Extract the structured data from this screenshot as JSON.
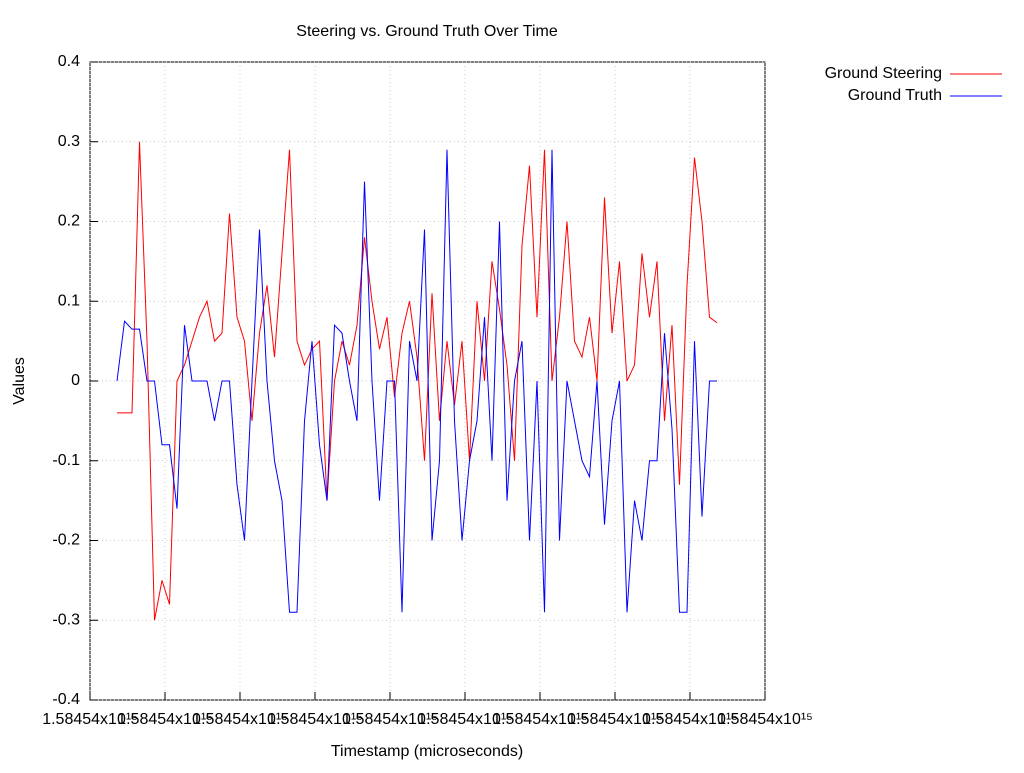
{
  "chart_data": {
    "type": "line",
    "title": "Steering vs. Ground Truth Over Time",
    "x_label": "Timestamp (microseconds)",
    "y_label": "Values",
    "x": [
      1584540003600000,
      1584540004600000,
      1584540005600000,
      1584540006600000,
      1584540007600000,
      1584540008600000,
      1584540009600000,
      1584540010600000,
      1584540011600000,
      1584540012600000,
      1584540013600000,
      1584540014600000,
      1584540015600000,
      1584540016600000,
      1584540017600000,
      1584540018600000,
      1584540019600000,
      1584540020600000,
      1584540021600000,
      1584540022600000,
      1584540023600000,
      1584540024600000,
      1584540025600000,
      1584540026600000,
      1584540027600000,
      1584540028600000,
      1584540029600000,
      1584540030600000,
      1584540031600000,
      1584540032600000,
      1584540033600000,
      1584540034600000,
      1584540035600000,
      1584540036600000,
      1584540037600000,
      1584540038600000,
      1584540039600000,
      1584540040600000,
      1584540041600000,
      1584540042600000,
      1584540043600000,
      1584540044600000,
      1584540045600000,
      1584540046600000,
      1584540047600000,
      1584540048600000,
      1584540049600000,
      1584540050600000,
      1584540051600000,
      1584540052600000,
      1584540053600000,
      1584540054600000,
      1584540055600000,
      1584540056600000,
      1584540057600000,
      1584540058600000,
      1584540059600000,
      1584540060600000,
      1584540061600000,
      1584540062600000,
      1584540063600000,
      1584540064600000,
      1584540065600000,
      1584540066600000,
      1584540067600000,
      1584540068600000,
      1584540069600000,
      1584540070600000,
      1584540071600000,
      1584540072600000,
      1584540073600000,
      1584540074600000,
      1584540075600000,
      1584540076600000,
      1584540077600000,
      1584540078600000,
      1584540079600000,
      1584540080600000,
      1584540081600000,
      1584540082600000,
      1584540083600000
    ],
    "series": [
      {
        "name": "Ground Steering",
        "color": "#ff0000",
        "values": [
          -0.04,
          -0.04,
          -0.04,
          0.3,
          0.05,
          -0.3,
          -0.25,
          -0.28,
          0.0,
          0.02,
          0.05,
          0.08,
          0.1,
          0.05,
          0.06,
          0.21,
          0.08,
          0.05,
          -0.05,
          0.06,
          0.12,
          0.03,
          0.16,
          0.29,
          0.05,
          0.02,
          0.04,
          0.05,
          -0.15,
          0.0,
          0.05,
          0.02,
          0.07,
          0.18,
          0.1,
          0.04,
          0.08,
          -0.02,
          0.06,
          0.1,
          0.03,
          -0.1,
          0.11,
          -0.05,
          0.05,
          -0.03,
          0.05,
          -0.1,
          0.1,
          0.0,
          0.15,
          0.09,
          0.02,
          -0.1,
          0.17,
          0.27,
          0.08,
          0.29,
          0.0,
          0.08,
          0.2,
          0.05,
          0.03,
          0.08,
          0.0,
          0.23,
          0.06,
          0.15,
          0.0,
          0.02,
          0.16,
          0.08,
          0.15,
          -0.05,
          0.07,
          -0.13,
          0.12,
          0.28,
          0.2,
          0.08,
          0.073
        ]
      },
      {
        "name": "Ground Truth",
        "color": "#0000ff",
        "values": [
          0,
          0.075,
          0.065,
          0.065,
          0,
          0,
          -0.08,
          -0.08,
          -0.16,
          0.07,
          0,
          0,
          0,
          -0.05,
          0,
          0,
          -0.13,
          -0.2,
          0,
          0.19,
          0,
          -0.1,
          -0.15,
          -0.29,
          -0.29,
          -0.05,
          0.05,
          -0.08,
          -0.15,
          0.07,
          0.06,
          0,
          -0.05,
          0.25,
          0,
          -0.15,
          0,
          0,
          -0.29,
          0.05,
          0,
          0.19,
          -0.2,
          -0.1,
          0.29,
          -0.05,
          -0.2,
          -0.1,
          -0.05,
          0.08,
          -0.1,
          0.2,
          -0.15,
          0,
          0.05,
          -0.2,
          0,
          -0.29,
          0.29,
          -0.2,
          0,
          -0.05,
          -0.1,
          -0.12,
          0,
          -0.18,
          -0.05,
          0,
          -0.29,
          -0.15,
          -0.2,
          -0.1,
          -0.1,
          0.06,
          -0.06,
          -0.29,
          -0.29,
          0.05,
          -0.17,
          0,
          0
        ]
      }
    ],
    "xlim": [
      1584540000000000,
      1584540090000000
    ],
    "xticks": [
      {
        "value": 1584540000000000,
        "label": "1.58454x10¹⁵"
      },
      {
        "value": 1584540010000000,
        "label": "1.58454x10¹⁵"
      },
      {
        "value": 1584540020000000,
        "label": "1.58454x10¹⁵"
      },
      {
        "value": 1584540030000000,
        "label": "1.58454x10¹⁵"
      },
      {
        "value": 1584540040000000,
        "label": "1.58454x10¹⁵"
      },
      {
        "value": 1584540050000000,
        "label": "1.58454x10¹⁵"
      },
      {
        "value": 1584540060000000,
        "label": "1.58454x10¹⁵"
      },
      {
        "value": 1584540070000000,
        "label": "1.58454x10¹⁵"
      },
      {
        "value": 1584540080000000,
        "label": "1.58454x10¹⁵"
      },
      {
        "value": 1584540090000000,
        "label": "1.58454x10¹⁵"
      }
    ],
    "ylim": [
      -0.4,
      0.4
    ],
    "yticks": [
      -0.4,
      -0.3,
      -0.2,
      -0.1,
      0,
      0.1,
      0.2,
      0.3,
      0.4
    ],
    "grid": true,
    "legend": "outside-top-right"
  }
}
